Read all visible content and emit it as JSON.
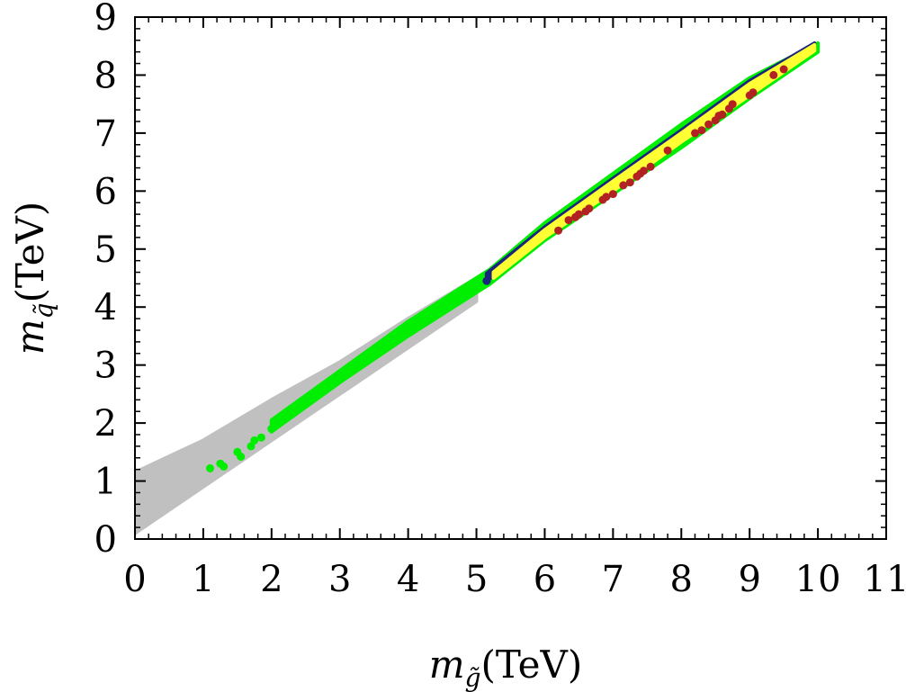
{
  "chart_data": {
    "type": "scatter",
    "xlabel": {
      "symbol": "m",
      "subscript": "g̃",
      "unit": "(TeV)"
    },
    "ylabel": {
      "symbol": "m",
      "subscript": "q̃",
      "unit": "(TeV)"
    },
    "xlim": [
      0,
      11
    ],
    "ylim": [
      0,
      9
    ],
    "xticks": [
      "0",
      "1",
      "2",
      "3",
      "4",
      "5",
      "6",
      "7",
      "8",
      "9",
      "10",
      "11"
    ],
    "yticks": [
      "0",
      "1",
      "2",
      "3",
      "4",
      "5",
      "6",
      "7",
      "8",
      "9"
    ],
    "grid": false,
    "colors": {
      "gray": "#c0c0c0",
      "green": "#00ee00",
      "navy": "#1a237e",
      "yellow": "#ffff33",
      "brown": "#b22222"
    },
    "series": [
      {
        "color": "#c0c0c0",
        "bands": [
          {
            "x": [
              0.0,
              1.0,
              2.0,
              3.0,
              4.0,
              5.0
            ],
            "y_low": [
              0.1,
              0.9,
              1.7,
              2.5,
              3.3,
              4.1
            ],
            "y_high": [
              1.15,
              1.7,
              2.4,
              3.05,
              3.8,
              4.5
            ]
          }
        ]
      },
      {
        "color": "#00ee00",
        "points": [
          [
            1.1,
            1.22
          ],
          [
            1.25,
            1.3
          ],
          [
            1.3,
            1.25
          ],
          [
            1.5,
            1.5
          ],
          [
            1.55,
            1.42
          ],
          [
            1.7,
            1.6
          ],
          [
            1.75,
            1.7
          ],
          [
            1.85,
            1.75
          ],
          [
            2.0,
            1.9
          ],
          [
            2.1,
            2.0
          ],
          [
            2.2,
            2.1
          ],
          [
            2.3,
            2.2
          ],
          [
            2.4,
            2.3
          ],
          [
            2.5,
            2.35
          ],
          [
            2.6,
            2.5
          ],
          [
            2.7,
            2.6
          ],
          [
            2.8,
            2.65
          ],
          [
            2.9,
            2.75
          ],
          [
            3.0,
            2.8
          ],
          [
            3.1,
            2.9
          ],
          [
            3.2,
            2.95
          ],
          [
            3.3,
            3.05
          ],
          [
            3.4,
            3.1
          ],
          [
            3.5,
            3.2
          ],
          [
            3.6,
            3.25
          ],
          [
            3.7,
            3.35
          ],
          [
            3.8,
            3.45
          ],
          [
            3.9,
            3.5
          ],
          [
            4.0,
            3.6
          ],
          [
            4.1,
            3.7
          ],
          [
            4.2,
            3.75
          ],
          [
            4.3,
            3.85
          ],
          [
            4.4,
            3.9
          ],
          [
            4.5,
            4.0
          ],
          [
            4.6,
            4.1
          ],
          [
            4.7,
            4.15
          ],
          [
            4.8,
            4.25
          ],
          [
            4.9,
            4.3
          ],
          [
            5.0,
            4.4
          ],
          [
            5.1,
            4.45
          ]
        ],
        "bands": [
          {
            "x": [
              2.0,
              3.0,
              4.0,
              5.2,
              6.0,
              7.0,
              8.0,
              9.0,
              10.0
            ],
            "y_low": [
              1.85,
              2.7,
              3.5,
              4.4,
              5.15,
              5.95,
              6.75,
              7.6,
              8.4
            ],
            "y_high": [
              2.05,
              2.9,
              3.75,
              4.65,
              5.45,
              6.3,
              7.15,
              7.95,
              8.55
            ]
          }
        ]
      },
      {
        "color": "#1a237e",
        "points": [
          [
            5.15,
            4.45
          ],
          [
            5.2,
            4.55
          ]
        ],
        "bands": [
          {
            "x": [
              5.15,
              6.0,
              7.0,
              8.0,
              9.0,
              9.95
            ],
            "y_low": [
              4.45,
              5.2,
              6.05,
              6.85,
              7.7,
              8.47
            ],
            "y_high": [
              4.58,
              5.38,
              6.22,
              7.05,
              7.9,
              8.55
            ]
          }
        ]
      },
      {
        "color": "#ffff33",
        "bands": [
          {
            "x": [
              5.25,
              6.0,
              7.0,
              8.0,
              9.0,
              9.95
            ],
            "y_low": [
              4.5,
              5.2,
              6.0,
              6.85,
              7.65,
              8.42
            ],
            "y_high": [
              4.6,
              5.33,
              6.17,
              7.0,
              7.85,
              8.52
            ]
          }
        ]
      },
      {
        "color": "#b22222",
        "points": [
          [
            6.2,
            5.32
          ],
          [
            6.35,
            5.5
          ],
          [
            6.45,
            5.55
          ],
          [
            6.5,
            5.6
          ],
          [
            6.6,
            5.65
          ],
          [
            6.65,
            5.7
          ],
          [
            6.85,
            5.85
          ],
          [
            6.9,
            5.9
          ],
          [
            7.0,
            5.95
          ],
          [
            7.15,
            6.1
          ],
          [
            7.25,
            6.15
          ],
          [
            7.35,
            6.25
          ],
          [
            7.4,
            6.3
          ],
          [
            7.45,
            6.35
          ],
          [
            7.55,
            6.42
          ],
          [
            7.8,
            6.7
          ],
          [
            8.2,
            7.0
          ],
          [
            8.3,
            7.05
          ],
          [
            8.4,
            7.15
          ],
          [
            8.5,
            7.22
          ],
          [
            8.55,
            7.3
          ],
          [
            8.6,
            7.32
          ],
          [
            8.7,
            7.42
          ],
          [
            8.75,
            7.5
          ],
          [
            9.0,
            7.65
          ],
          [
            9.05,
            7.7
          ],
          [
            9.35,
            8.0
          ],
          [
            9.5,
            8.1
          ]
        ]
      }
    ]
  }
}
